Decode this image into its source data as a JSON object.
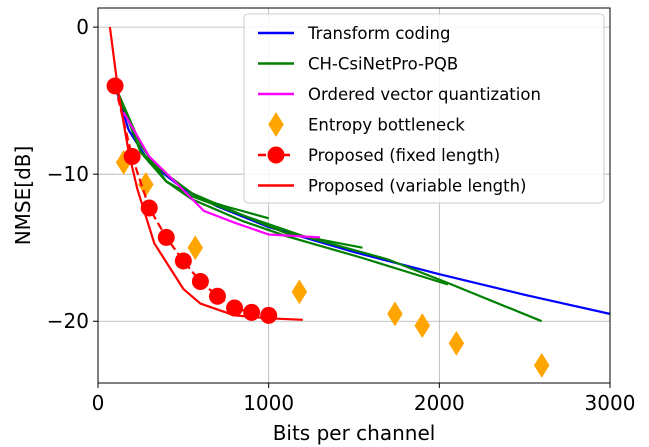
{
  "chart_data": {
    "type": "line",
    "title": "",
    "xlabel": "Bits per channel",
    "ylabel": "NMSE[dB]",
    "xlim": [
      0,
      3000
    ],
    "ylim": [
      -24.2,
      1.3
    ],
    "xticks": [
      0,
      1000,
      2000,
      3000
    ],
    "yticks": [
      0,
      -10,
      -20
    ],
    "xtick_labels": [
      "0",
      "1000",
      "2000",
      "3000"
    ],
    "ytick_labels": [
      "0",
      "−10",
      "−20"
    ],
    "grid": true,
    "legend_position": "top-right",
    "series": [
      {
        "name": "Transform coding",
        "kind": "line",
        "color": "#0000ff",
        "segments": [
          [
            [
              100,
              -4.0
            ],
            [
              180,
              -7.0
            ],
            [
              300,
              -9.2
            ],
            [
              500,
              -11.0
            ],
            [
              700,
              -12.2
            ],
            [
              1000,
              -13.6
            ],
            [
              1500,
              -15.3
            ],
            [
              2000,
              -16.8
            ],
            [
              2500,
              -18.2
            ],
            [
              3000,
              -19.5
            ]
          ]
        ]
      },
      {
        "name": "CH-CsiNetPro-PQB",
        "kind": "line",
        "color": "#008000",
        "segments": [
          [
            [
              100,
              -4.0
            ],
            [
              250,
              -8.0
            ],
            [
              400,
              -10.5
            ],
            [
              550,
              -11.5
            ],
            [
              750,
              -12.2
            ],
            [
              1000,
              -13.0
            ]
          ],
          [
            [
              100,
              -4.0
            ],
            [
              250,
              -8.5
            ],
            [
              400,
              -10.0
            ],
            [
              550,
              -11.3
            ],
            [
              850,
              -12.8
            ],
            [
              1100,
              -14.0
            ],
            [
              1550,
              -15.0
            ]
          ],
          [
            [
              100,
              -4.0
            ],
            [
              250,
              -8.5
            ],
            [
              400,
              -10.5
            ],
            [
              550,
              -11.7
            ],
            [
              850,
              -13.2
            ],
            [
              1100,
              -14.2
            ],
            [
              1550,
              -15.7
            ],
            [
              2050,
              -17.5
            ]
          ],
          [
            [
              100,
              -4.0
            ],
            [
              250,
              -8.5
            ],
            [
              400,
              -10.5
            ],
            [
              550,
              -11.5
            ],
            [
              850,
              -12.8
            ],
            [
              1200,
              -14.2
            ],
            [
              1700,
              -15.8
            ],
            [
              2050,
              -17.4
            ],
            [
              2600,
              -20.0
            ]
          ]
        ]
      },
      {
        "name": "Ordered vector quantization",
        "kind": "line",
        "color": "#ff00ff",
        "segments": [
          [
            [
              150,
              -5.8
            ],
            [
              300,
              -8.8
            ],
            [
              450,
              -10.5
            ],
            [
              620,
              -12.5
            ],
            [
              800,
              -13.3
            ],
            [
              1000,
              -14.1
            ],
            [
              1300,
              -14.3
            ]
          ]
        ]
      },
      {
        "name": "Entropy bottleneck",
        "kind": "scatter",
        "marker": "diamond",
        "color": "#ffa500",
        "points": [
          [
            150,
            -9.2
          ],
          [
            280,
            -10.7
          ],
          [
            570,
            -15.0
          ],
          [
            1180,
            -18.0
          ],
          [
            1740,
            -19.5
          ],
          [
            1900,
            -20.3
          ],
          [
            2100,
            -21.5
          ],
          [
            2600,
            -23.0
          ]
        ]
      },
      {
        "name": "Proposed (fixed length)",
        "kind": "line+markers",
        "marker": "circle",
        "dash": true,
        "color": "#ff0000",
        "points": [
          [
            100,
            -4.0
          ],
          [
            200,
            -8.8
          ],
          [
            300,
            -12.3
          ],
          [
            400,
            -14.3
          ],
          [
            500,
            -15.9
          ],
          [
            600,
            -17.3
          ],
          [
            700,
            -18.3
          ],
          [
            800,
            -19.1
          ],
          [
            900,
            -19.4
          ],
          [
            1000,
            -19.6
          ]
        ]
      },
      {
        "name": "Proposed (variable length)",
        "kind": "line",
        "color": "#ff0000",
        "segments": [
          [
            [
              70,
              0.0
            ],
            [
              120,
              -4.5
            ],
            [
              180,
              -8.5
            ],
            [
              230,
              -11.0
            ],
            [
              330,
              -14.7
            ],
            [
              500,
              -17.8
            ],
            [
              600,
              -18.8
            ],
            [
              800,
              -19.6
            ],
            [
              1000,
              -19.8
            ],
            [
              1200,
              -19.9
            ]
          ]
        ]
      }
    ]
  }
}
